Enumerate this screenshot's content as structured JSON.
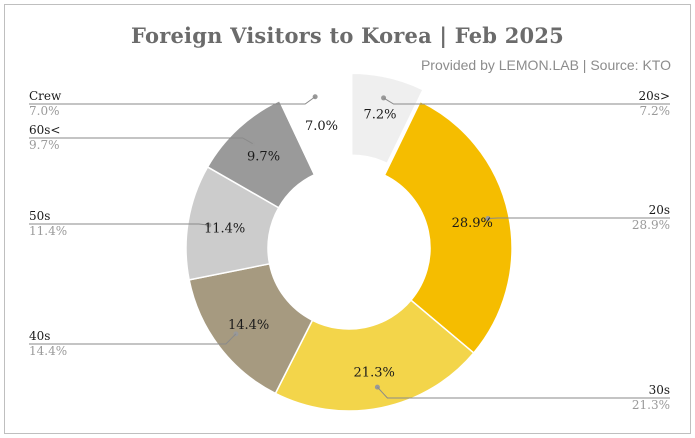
{
  "title": "Foreign Visitors to Korea | Feb 2025",
  "subtitle": "Provided by LEMON.LAB | Source: KTO",
  "chart_data": {
    "type": "pie",
    "donut": true,
    "title": "Foreign Visitors to Korea | Feb 2025",
    "subtitle": "Provided by LEMON.LAB | Source: KTO",
    "unit": "%",
    "legend": "none",
    "slices": [
      {
        "label": "20s>",
        "value": 7.2,
        "display": "7.2%",
        "color": "#efefef",
        "exploded": true
      },
      {
        "label": "20s",
        "value": 28.9,
        "display": "28.9%",
        "color": "#f5bd00",
        "exploded": false
      },
      {
        "label": "30s",
        "value": 21.3,
        "display": "21.3%",
        "color": "#f3d54a",
        "exploded": false
      },
      {
        "label": "40s",
        "value": 14.4,
        "display": "14.4%",
        "color": "#a69a80",
        "exploded": false
      },
      {
        "label": "50s",
        "value": 11.4,
        "display": "11.4%",
        "color": "#cccccc",
        "exploded": false
      },
      {
        "label": "60s<",
        "value": 9.7,
        "display": "9.7%",
        "color": "#9a9a9a",
        "exploded": false
      },
      {
        "label": "Crew",
        "value": 7.0,
        "display": "7.0%",
        "color": "#ffffff",
        "exploded": false
      }
    ]
  }
}
